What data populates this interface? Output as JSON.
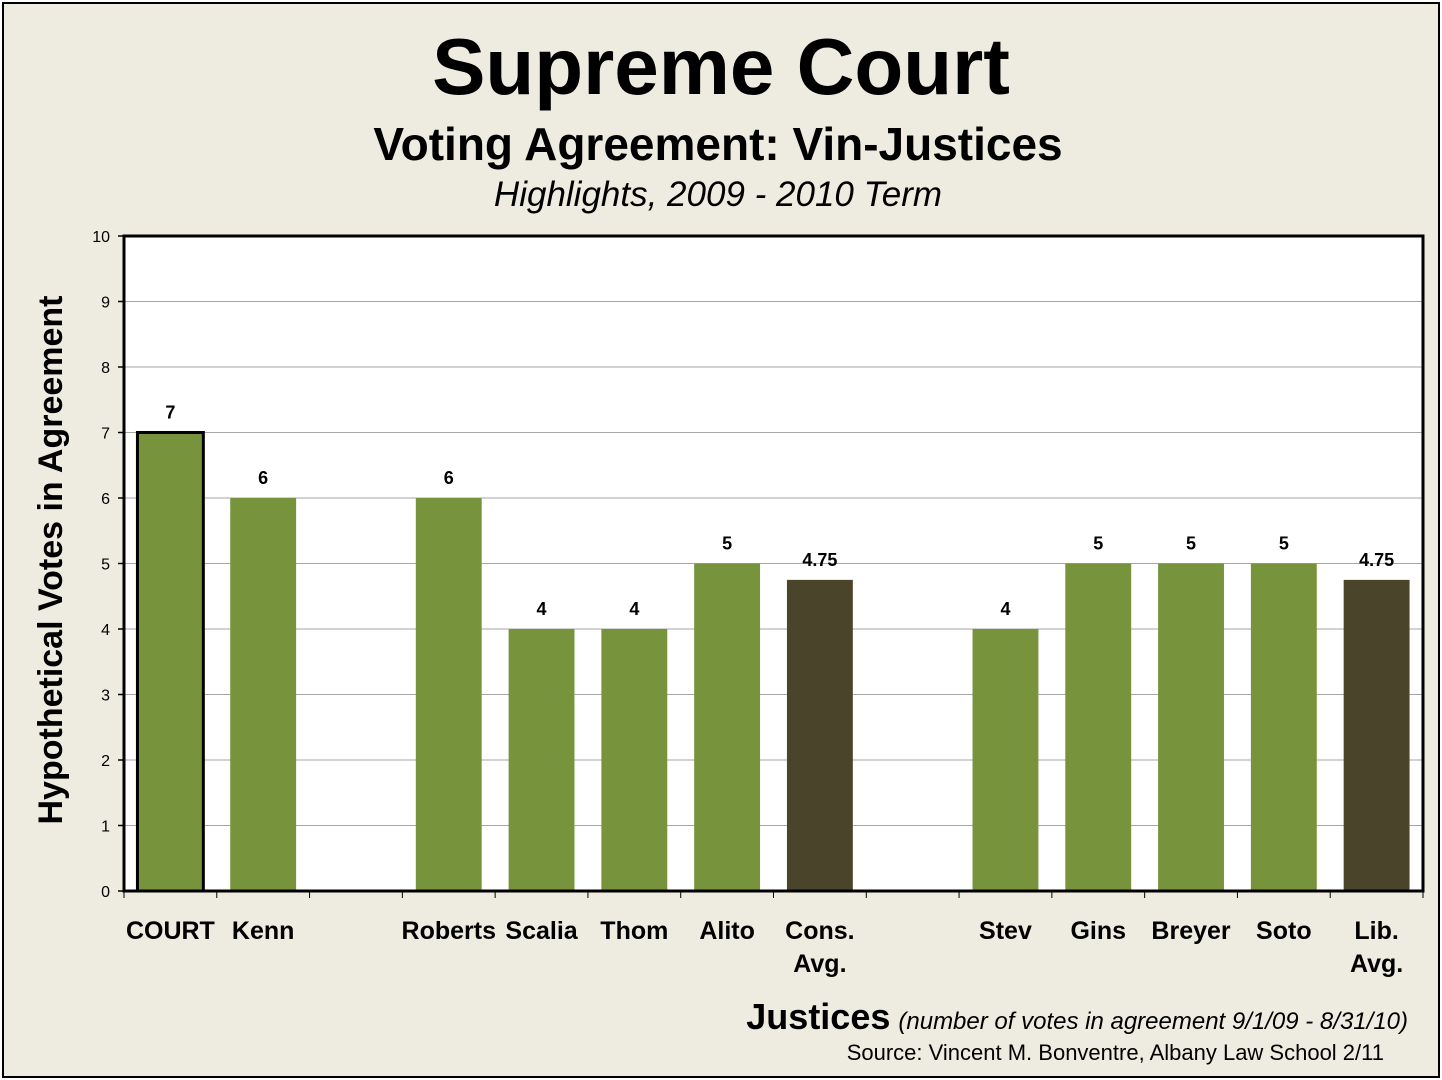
{
  "chart_data": {
    "type": "bar",
    "title": "Supreme Court",
    "subtitle": "Voting Agreement: Vin-Justices",
    "subtitle2": "Highlights, 2009 - 2010 Term",
    "xlabel": "Justices",
    "xlabel_note": "(number of votes in agreement 9/1/09 - 8/31/10)",
    "ylabel": "Hypothetical Votes in Agreement",
    "source": "Source: Vincent M. Bonventre, Albany Law School  2/11",
    "ylim": [
      0,
      10
    ],
    "yticks": [
      "0",
      "1",
      "2",
      "3",
      "4",
      "5",
      "6",
      "7",
      "8",
      "9",
      "10"
    ],
    "grid": true,
    "categories": [
      [
        "COURT"
      ],
      [
        "Kenn"
      ],
      [
        ""
      ],
      [
        "Roberts"
      ],
      [
        "Scalia"
      ],
      [
        "Thom"
      ],
      [
        "Alito"
      ],
      [
        "Cons.",
        "Avg."
      ],
      [
        ""
      ],
      [
        "Stev"
      ],
      [
        "Gins"
      ],
      [
        "Breyer"
      ],
      [
        "Soto"
      ],
      [
        "Lib.",
        "Avg."
      ]
    ],
    "values": [
      7,
      6,
      null,
      6,
      4,
      4,
      5,
      4.75,
      null,
      4,
      5,
      5,
      5,
      4.75
    ],
    "value_labels": [
      "7",
      "6",
      "",
      "6",
      "4",
      "4",
      "5",
      "4.75",
      "",
      "4",
      "5",
      "5",
      "5",
      "4.75"
    ],
    "bar_kinds": [
      "court",
      "justice",
      "none",
      "justice",
      "justice",
      "justice",
      "justice",
      "average",
      "none",
      "justice",
      "justice",
      "justice",
      "justice",
      "average"
    ],
    "colors": {
      "justice": "#77933c",
      "average": "#4a452a",
      "court": "#77933c",
      "court_outline": "#000000",
      "background": "#eeebe1",
      "plot": "#ffffff",
      "grid": "#a6a6a6"
    }
  }
}
